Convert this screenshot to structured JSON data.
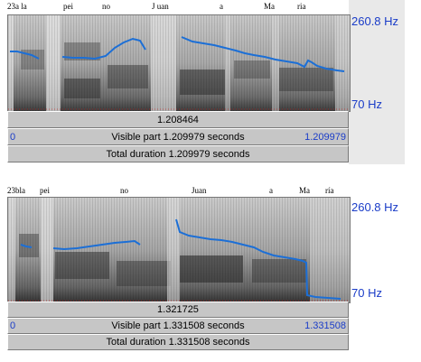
{
  "panel1": {
    "segments": [
      "23a la",
      "pei",
      "no",
      "J uan",
      "a",
      "Ma",
      "ria"
    ],
    "freq_top": "260.8 Hz",
    "freq_bottom": "70 Hz",
    "cursor_time": "1.208464",
    "visible_start": "0",
    "visible_label": "Visible part 1.209979 seconds",
    "visible_end": "1.209979",
    "total_label": "Total duration 1.209979 seconds"
  },
  "panel2": {
    "segments": [
      "23bla",
      "pei",
      "no",
      "Juan",
      "a",
      "Ma",
      "ría"
    ],
    "freq_top": "260.8 Hz",
    "freq_bottom": "70 Hz",
    "cursor_time": "1.321725",
    "visible_start": "0",
    "visible_label": "Visible part 1.331508 seconds",
    "visible_end": "1.331508",
    "total_label": "Total duration 1.331508 seconds"
  },
  "colors": {
    "pitch": "#1c6fd6",
    "label_blue": "#1a3cc8",
    "bar_gray": "#c6c6c6"
  }
}
